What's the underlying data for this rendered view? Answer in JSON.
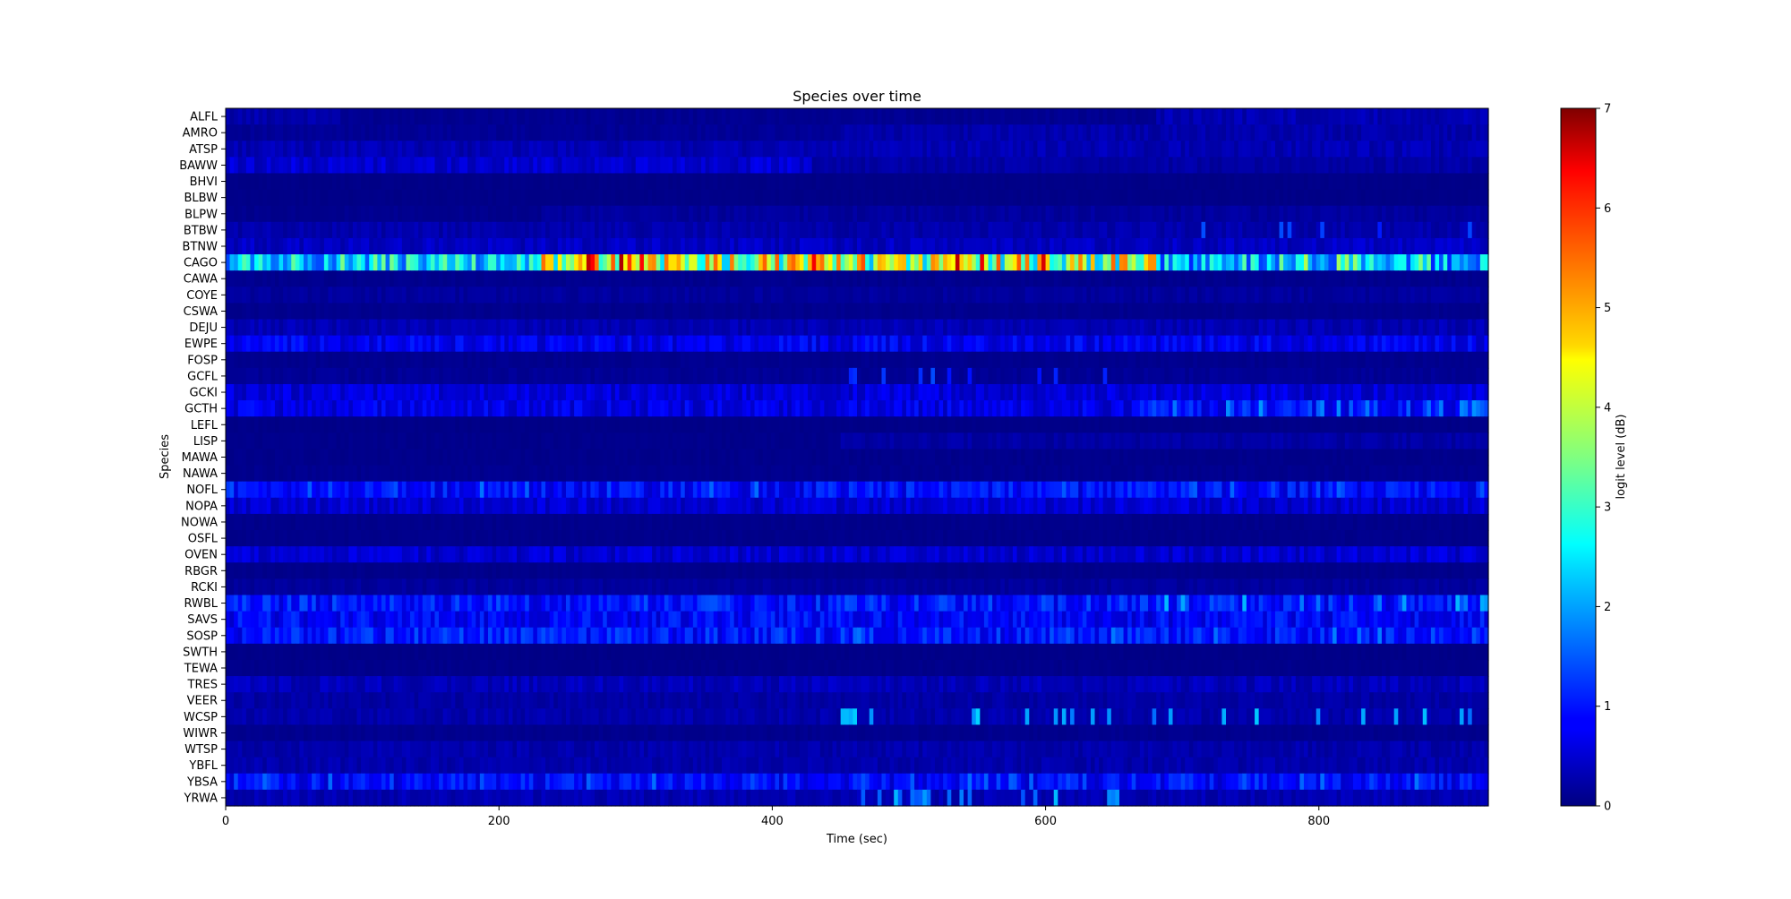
{
  "chart_data": {
    "type": "heatmap",
    "title": "Species over time",
    "xlabel": "Time (sec)",
    "ylabel": "Species",
    "xlim": [
      0,
      924
    ],
    "x_ticks": [
      0,
      200,
      400,
      600,
      800
    ],
    "num_time_bins": 308,
    "categories": [
      "ALFL",
      "AMRO",
      "ATSP",
      "BAWW",
      "BHVI",
      "BLBW",
      "BLPW",
      "BTBW",
      "BTNW",
      "CAGO",
      "CAWA",
      "COYE",
      "CSWA",
      "DEJU",
      "EWPE",
      "FOSP",
      "GCFL",
      "GCKI",
      "GCTH",
      "LEFL",
      "LISP",
      "MAWA",
      "NAWA",
      "NOFL",
      "NOPA",
      "NOWA",
      "OSFL",
      "OVEN",
      "RBGR",
      "RCKI",
      "RWBL",
      "SAVS",
      "SOSP",
      "SWTH",
      "TEWA",
      "TRES",
      "VEER",
      "WCSP",
      "WIWR",
      "WTSP",
      "YBFL",
      "YBSA",
      "YRWA"
    ],
    "colorbar": {
      "label": "logit level (dB)",
      "min": 0,
      "max": 7,
      "ticks": [
        0,
        1,
        2,
        3,
        4,
        5,
        6,
        7
      ],
      "colormap": "jet"
    },
    "rows": [
      {
        "segments": [
          [
            0,
            85,
            0.3
          ],
          [
            85,
            680,
            0.12
          ],
          [
            680,
            924,
            0.35
          ]
        ],
        "spikes": []
      },
      {
        "segments": [
          [
            0,
            450,
            0.15
          ],
          [
            450,
            924,
            0.3
          ]
        ],
        "spikes": []
      },
      {
        "segments": [
          [
            0,
            924,
            0.35
          ]
        ],
        "spikes": []
      },
      {
        "segments": [
          [
            0,
            430,
            0.55
          ],
          [
            430,
            924,
            0.25
          ]
        ],
        "spikes": []
      },
      {
        "segments": [
          [
            0,
            924,
            0.06
          ]
        ],
        "spikes": []
      },
      {
        "segments": [
          [
            0,
            924,
            0.06
          ]
        ],
        "spikes": []
      },
      {
        "segments": [
          [
            0,
            230,
            0.1
          ],
          [
            230,
            924,
            0.2
          ]
        ],
        "spikes": []
      },
      {
        "segments": [
          [
            0,
            924,
            0.3
          ]
        ],
        "spikes": [
          [
            680,
            924,
            1.3,
            0.12
          ]
        ]
      },
      {
        "segments": [
          [
            0,
            924,
            0.45
          ]
        ],
        "spikes": []
      },
      {
        "segments": [
          [
            0,
            230,
            2.4
          ],
          [
            230,
            680,
            3.8
          ],
          [
            680,
            924,
            2.0
          ]
        ],
        "spikes": [
          [
            230,
            680,
            5.6,
            0.15
          ],
          [
            680,
            924,
            3.3,
            0.25
          ]
        ]
      },
      {
        "segments": [
          [
            0,
            924,
            0.1
          ]
        ],
        "spikes": []
      },
      {
        "segments": [
          [
            0,
            924,
            0.2
          ]
        ],
        "spikes": []
      },
      {
        "segments": [
          [
            0,
            924,
            0.1
          ]
        ],
        "spikes": []
      },
      {
        "segments": [
          [
            0,
            924,
            0.35
          ]
        ],
        "spikes": []
      },
      {
        "segments": [
          [
            0,
            924,
            0.75
          ]
        ],
        "spikes": []
      },
      {
        "segments": [
          [
            0,
            924,
            0.1
          ]
        ],
        "spikes": []
      },
      {
        "segments": [
          [
            0,
            924,
            0.15
          ]
        ],
        "spikes": [
          [
            450,
            665,
            1.2,
            0.15
          ]
        ]
      },
      {
        "segments": [
          [
            0,
            924,
            0.6
          ]
        ],
        "spikes": []
      },
      {
        "segments": [
          [
            0,
            670,
            0.7
          ],
          [
            670,
            924,
            0.9
          ]
        ],
        "spikes": [
          [
            670,
            924,
            1.6,
            0.25
          ]
        ]
      },
      {
        "segments": [
          [
            0,
            924,
            0.06
          ]
        ],
        "spikes": []
      },
      {
        "segments": [
          [
            0,
            450,
            0.08
          ],
          [
            450,
            924,
            0.25
          ]
        ],
        "spikes": []
      },
      {
        "segments": [
          [
            0,
            924,
            0.08
          ]
        ],
        "spikes": []
      },
      {
        "segments": [
          [
            0,
            924,
            0.1
          ]
        ],
        "spikes": []
      },
      {
        "segments": [
          [
            0,
            924,
            0.9
          ]
        ],
        "spikes": [
          [
            0,
            924,
            1.4,
            0.1
          ]
        ]
      },
      {
        "segments": [
          [
            0,
            924,
            0.55
          ]
        ],
        "spikes": []
      },
      {
        "segments": [
          [
            0,
            924,
            0.08
          ]
        ],
        "spikes": []
      },
      {
        "segments": [
          [
            0,
            924,
            0.08
          ]
        ],
        "spikes": []
      },
      {
        "segments": [
          [
            0,
            924,
            0.55
          ]
        ],
        "spikes": []
      },
      {
        "segments": [
          [
            0,
            924,
            0.08
          ]
        ],
        "spikes": []
      },
      {
        "segments": [
          [
            0,
            924,
            0.2
          ]
        ],
        "spikes": []
      },
      {
        "segments": [
          [
            0,
            924,
            1.0
          ]
        ],
        "spikes": [
          [
            680,
            924,
            1.8,
            0.12
          ]
        ]
      },
      {
        "segments": [
          [
            0,
            924,
            0.85
          ]
        ],
        "spikes": []
      },
      {
        "segments": [
          [
            0,
            924,
            1.0
          ]
        ],
        "spikes": [
          [
            440,
            924,
            1.5,
            0.1
          ]
        ]
      },
      {
        "segments": [
          [
            0,
            924,
            0.06
          ]
        ],
        "spikes": []
      },
      {
        "segments": [
          [
            0,
            924,
            0.08
          ]
        ],
        "spikes": []
      },
      {
        "segments": [
          [
            0,
            924,
            0.4
          ]
        ],
        "spikes": []
      },
      {
        "segments": [
          [
            0,
            924,
            0.25
          ]
        ],
        "spikes": []
      },
      {
        "segments": [
          [
            0,
            924,
            0.3
          ]
        ],
        "spikes": [
          [
            450,
            924,
            2.0,
            0.18
          ]
        ]
      },
      {
        "segments": [
          [
            0,
            924,
            0.1
          ]
        ],
        "spikes": []
      },
      {
        "segments": [
          [
            0,
            924,
            0.3
          ]
        ],
        "spikes": []
      },
      {
        "segments": [
          [
            0,
            924,
            0.3
          ]
        ],
        "spikes": []
      },
      {
        "segments": [
          [
            0,
            924,
            0.85
          ]
        ],
        "spikes": [
          [
            0,
            924,
            1.4,
            0.12
          ]
        ]
      },
      {
        "segments": [
          [
            0,
            924,
            0.35
          ]
        ],
        "spikes": [
          [
            455,
            670,
            1.8,
            0.2
          ]
        ]
      }
    ]
  }
}
